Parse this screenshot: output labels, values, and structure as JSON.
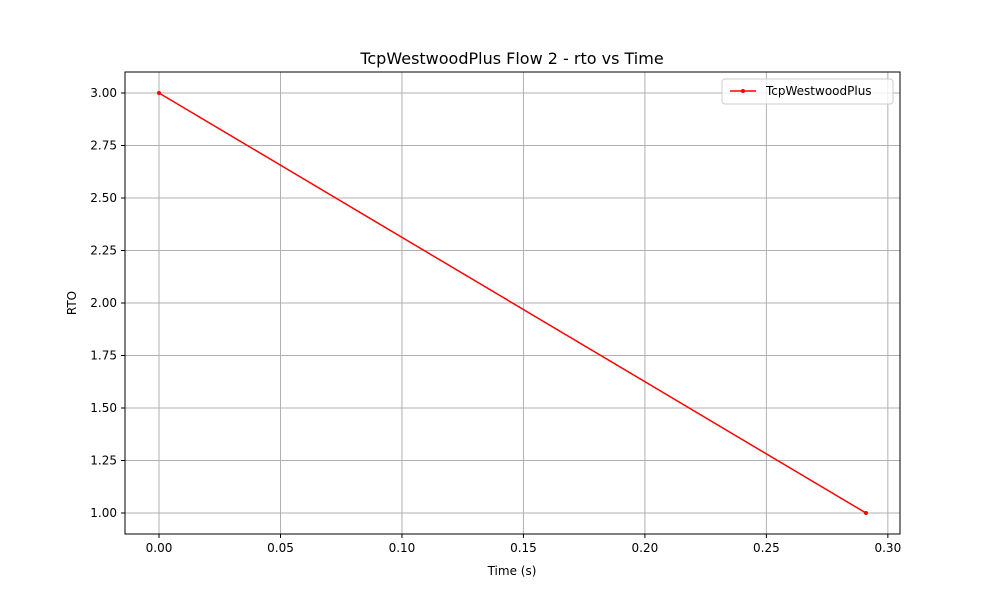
{
  "chart_data": {
    "type": "line",
    "title": "TcpWestwoodPlus Flow 2 - rto vs Time",
    "xlabel": "Time (s)",
    "ylabel": "RTO",
    "xlim": [
      -0.014,
      0.305
    ],
    "ylim": [
      0.9,
      3.1
    ],
    "xticks": [
      0.0,
      0.05,
      0.1,
      0.15,
      0.2,
      0.25,
      0.3
    ],
    "xtick_labels": [
      "0.00",
      "0.05",
      "0.10",
      "0.15",
      "0.20",
      "0.25",
      "0.30"
    ],
    "yticks": [
      1.0,
      1.25,
      1.5,
      1.75,
      2.0,
      2.25,
      2.5,
      2.75,
      3.0
    ],
    "ytick_labels": [
      "1.00",
      "1.25",
      "1.50",
      "1.75",
      "2.00",
      "2.25",
      "2.50",
      "2.75",
      "3.00"
    ],
    "grid": true,
    "legend_position": "top-right",
    "series": [
      {
        "name": "TcpWestwoodPlus",
        "color": "#ff0000",
        "x": [
          0.0,
          0.291
        ],
        "y": [
          3.0,
          1.0
        ]
      }
    ]
  }
}
